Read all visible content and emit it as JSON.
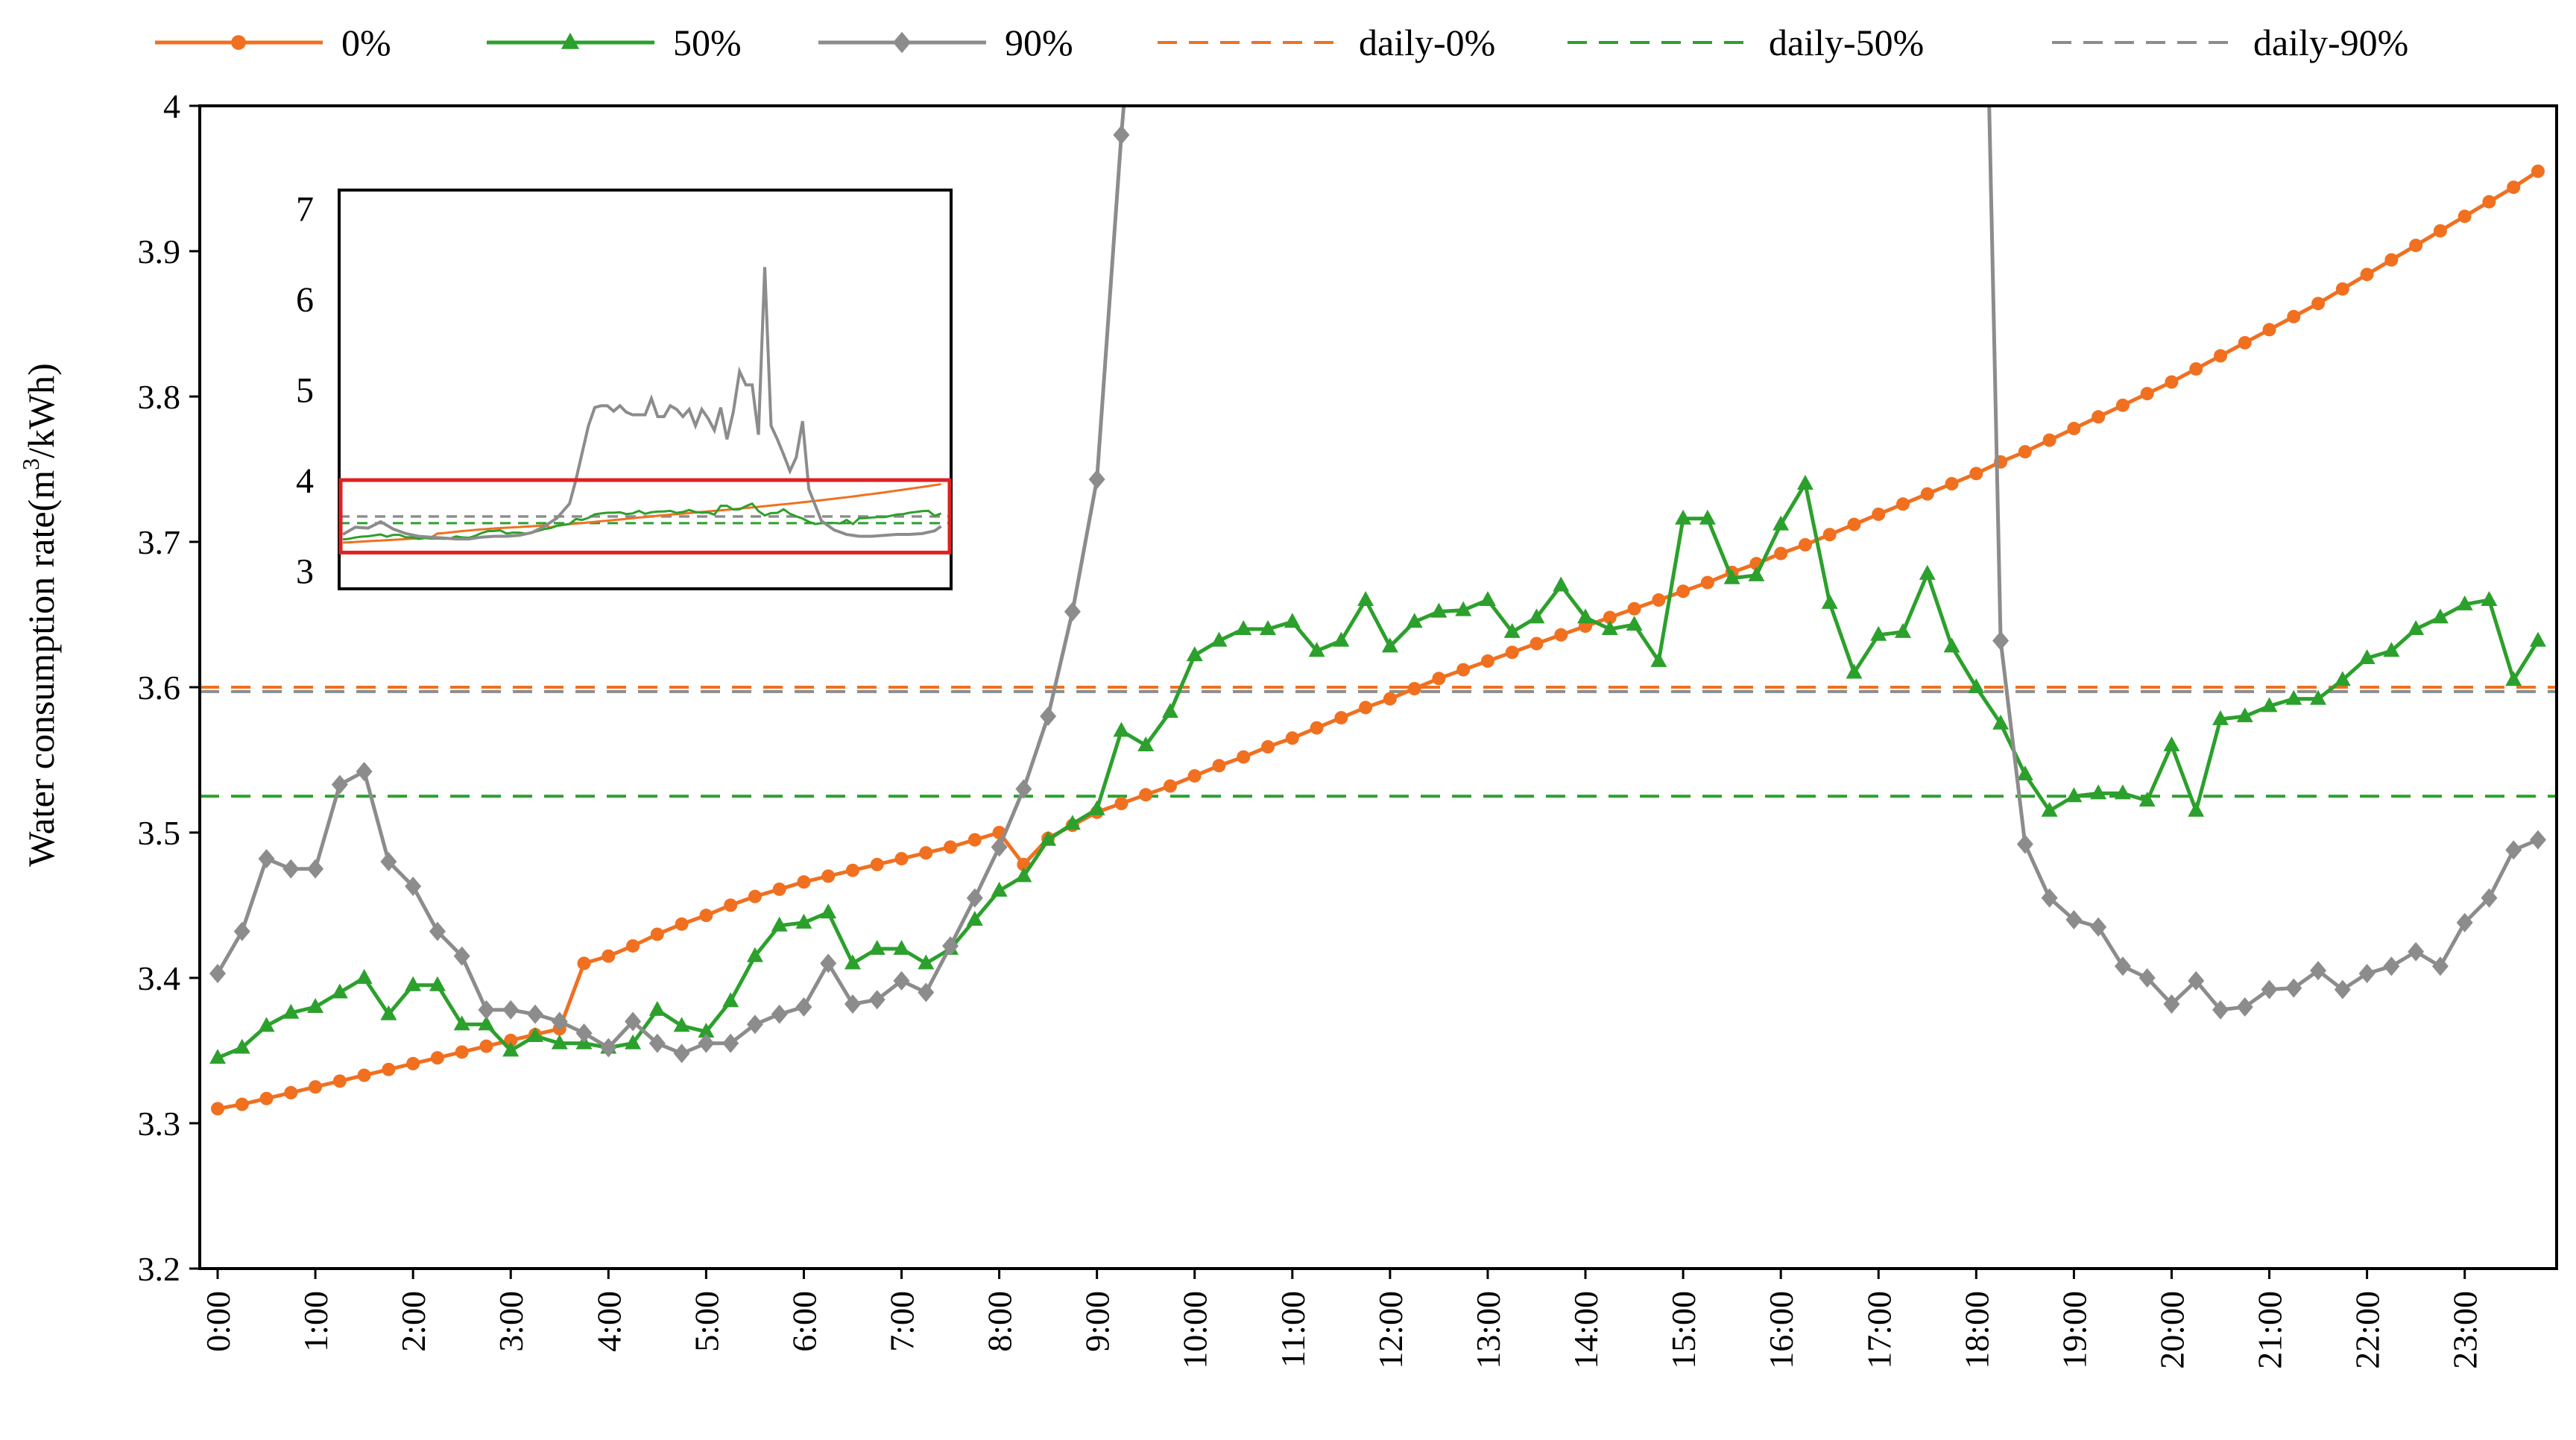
{
  "chart_data": {
    "type": "line",
    "title": "",
    "ylabel": "Water consumption rate(m³/kWh)",
    "ylabel_parts": [
      "Water consumption rate(m",
      "3",
      "/kWh)"
    ],
    "xlabel": "",
    "ylim": [
      3.2,
      4.0
    ],
    "yticks": [
      "3.2",
      "3.3",
      "3.4",
      "3.5",
      "3.6",
      "3.7",
      "3.8",
      "3.9",
      "4"
    ],
    "x_hours_range": [
      0,
      23.75
    ],
    "xtick_labels": [
      "0:00",
      "1:00",
      "2:00",
      "3:00",
      "4:00",
      "5:00",
      "6:00",
      "7:00",
      "8:00",
      "9:00",
      "10:00",
      "11:00",
      "12:00",
      "13:00",
      "14:00",
      "15:00",
      "16:00",
      "17:00",
      "18:00",
      "19:00",
      "20:00",
      "21:00",
      "22:00",
      "23:00"
    ],
    "grid": false,
    "legend_position": "top",
    "series": [
      {
        "name": "0%",
        "color": "#f07020",
        "marker": "circle",
        "x": [
          0,
          0.25,
          0.5,
          0.75,
          1,
          1.25,
          1.5,
          1.75,
          2,
          2.25,
          2.5,
          2.75,
          3,
          3.25,
          3.5,
          3.75,
          4,
          4.25,
          4.5,
          4.75,
          5,
          5.25,
          5.5,
          5.75,
          6,
          6.25,
          6.5,
          6.75,
          7,
          7.25,
          7.5,
          7.75,
          8,
          8.25,
          8.5,
          8.75,
          9,
          9.25,
          9.5,
          9.75,
          10,
          10.25,
          10.5,
          10.75,
          11,
          11.25,
          11.5,
          11.75,
          12,
          12.25,
          12.5,
          12.75,
          13,
          13.25,
          13.5,
          13.75,
          14,
          14.25,
          14.5,
          14.75,
          15,
          15.25,
          15.5,
          15.75,
          16,
          16.25,
          16.5,
          16.75,
          17,
          17.25,
          17.5,
          17.75,
          18,
          18.25,
          18.5,
          18.75,
          19,
          19.25,
          19.5,
          19.75,
          20,
          20.25,
          20.5,
          20.75,
          21,
          21.25,
          21.5,
          21.75,
          22,
          22.25,
          22.5,
          22.75,
          23,
          23.25,
          23.5,
          23.75
        ],
        "values": [
          3.31,
          3.313,
          3.317,
          3.321,
          3.325,
          3.329,
          3.333,
          3.337,
          3.341,
          3.345,
          3.349,
          3.353,
          3.357,
          3.361,
          3.365,
          3.41,
          3.415,
          3.422,
          3.43,
          3.437,
          3.443,
          3.45,
          3.456,
          3.461,
          3.466,
          3.47,
          3.474,
          3.478,
          3.482,
          3.486,
          3.49,
          3.495,
          3.5,
          3.478,
          3.496,
          3.505,
          3.514,
          3.52,
          3.526,
          3.532,
          3.539,
          3.546,
          3.552,
          3.559,
          3.565,
          3.572,
          3.579,
          3.586,
          3.592,
          3.599,
          3.606,
          3.612,
          3.618,
          3.624,
          3.63,
          3.636,
          3.642,
          3.648,
          3.654,
          3.66,
          3.666,
          3.672,
          3.679,
          3.685,
          3.692,
          3.698,
          3.705,
          3.712,
          3.719,
          3.726,
          3.733,
          3.74,
          3.747,
          3.755,
          3.762,
          3.77,
          3.778,
          3.786,
          3.794,
          3.802,
          3.81,
          3.819,
          3.828,
          3.837,
          3.846,
          3.855,
          3.864,
          3.874,
          3.884,
          3.894,
          3.904,
          3.914,
          3.924,
          3.934,
          3.944,
          3.955
        ]
      },
      {
        "name": "50%",
        "color": "#2ca02c",
        "marker": "triangle",
        "x": [
          0,
          0.25,
          0.5,
          0.75,
          1,
          1.25,
          1.5,
          1.75,
          2,
          2.25,
          2.5,
          2.75,
          3,
          3.25,
          3.5,
          3.75,
          4,
          4.25,
          4.5,
          4.75,
          5,
          5.25,
          5.5,
          5.75,
          6,
          6.25,
          6.5,
          6.75,
          7,
          7.25,
          7.5,
          7.75,
          8,
          8.25,
          8.5,
          8.75,
          9,
          9.25,
          9.5,
          9.75,
          10,
          10.25,
          10.5,
          10.75,
          11,
          11.25,
          11.5,
          11.75,
          12,
          12.25,
          12.5,
          12.75,
          13,
          13.25,
          13.5,
          13.75,
          14,
          14.25,
          14.5,
          14.75,
          15,
          15.25,
          15.5,
          15.75,
          16,
          16.25,
          16.5,
          16.75,
          17,
          17.25,
          17.5,
          17.75,
          18,
          18.25,
          18.5,
          18.75,
          19,
          19.25,
          19.5,
          19.75,
          20,
          20.25,
          20.5,
          20.75,
          21,
          21.25,
          21.5,
          21.75,
          22,
          22.25,
          22.5,
          22.75,
          23,
          23.25,
          23.5,
          23.75
        ],
        "values": [
          3.345,
          3.352,
          3.367,
          3.376,
          3.38,
          3.39,
          3.4,
          3.375,
          3.395,
          3.395,
          3.368,
          3.368,
          3.35,
          3.36,
          3.355,
          3.355,
          3.352,
          3.355,
          3.378,
          3.367,
          3.363,
          3.384,
          3.415,
          3.436,
          3.438,
          3.445,
          3.41,
          3.42,
          3.42,
          3.41,
          3.42,
          3.44,
          3.46,
          3.47,
          3.495,
          3.506,
          3.516,
          3.57,
          3.56,
          3.583,
          3.622,
          3.632,
          3.64,
          3.64,
          3.645,
          3.625,
          3.632,
          3.66,
          3.628,
          3.645,
          3.652,
          3.653,
          3.66,
          3.638,
          3.648,
          3.67,
          3.648,
          3.64,
          3.643,
          3.618,
          3.716,
          3.716,
          3.675,
          3.677,
          3.712,
          3.74,
          3.658,
          3.61,
          3.636,
          3.638,
          3.678,
          3.628,
          3.6,
          3.575,
          3.54,
          3.515,
          3.525,
          3.527,
          3.527,
          3.522,
          3.56,
          3.515,
          3.578,
          3.58,
          3.587,
          3.592,
          3.592,
          3.605,
          3.62,
          3.625,
          3.64,
          3.648,
          3.657,
          3.66,
          3.605,
          3.632
        ]
      },
      {
        "name": "90%",
        "color": "#8c8c8c",
        "marker": "diamond",
        "x": [
          0,
          0.25,
          0.5,
          0.75,
          1,
          1.25,
          1.5,
          1.75,
          2,
          2.25,
          2.5,
          2.75,
          3,
          3.25,
          3.5,
          3.75,
          4,
          4.25,
          4.5,
          4.75,
          5,
          5.25,
          5.5,
          5.75,
          6,
          6.25,
          6.5,
          6.75,
          7,
          7.25,
          7.5,
          7.75,
          8,
          8.25,
          8.5,
          8.75,
          9,
          9.25,
          18.25,
          18.5,
          18.75,
          19,
          19.25,
          19.5,
          19.75,
          20,
          20.25,
          20.5,
          20.75,
          21,
          21.25,
          21.5,
          21.75,
          22,
          22.25,
          22.5,
          22.75,
          23,
          23.25,
          23.5,
          23.75
        ],
        "values": [
          3.403,
          3.432,
          3.482,
          3.475,
          3.475,
          3.533,
          3.542,
          3.48,
          3.463,
          3.432,
          3.415,
          3.378,
          3.378,
          3.375,
          3.37,
          3.362,
          3.352,
          3.37,
          3.355,
          3.348,
          3.355,
          3.355,
          3.368,
          3.375,
          3.38,
          3.41,
          3.382,
          3.385,
          3.398,
          3.39,
          3.422,
          3.455,
          3.49,
          3.53,
          3.58,
          3.652,
          3.743,
          3.98,
          3.632,
          3.492,
          3.455,
          3.44,
          3.435,
          3.408,
          3.4,
          3.382,
          3.398,
          3.378,
          3.38,
          3.392,
          3.393,
          3.405,
          3.392,
          3.403,
          3.408,
          3.418,
          3.408,
          3.438,
          3.455,
          3.488,
          3.495
        ],
        "offscale_segments": [
          [
            9.4,
            18.1
          ]
        ]
      },
      {
        "name": "daily-0%",
        "color": "#f07020",
        "dashed": true,
        "constant": 3.6
      },
      {
        "name": "daily-50%",
        "color": "#2ca02c",
        "dashed": true,
        "constant": 3.525
      },
      {
        "name": "daily-90%",
        "color": "#8c8c8c",
        "dashed": true,
        "constant": 3.597
      }
    ],
    "inset": {
      "ylim": [
        2.8,
        7.2
      ],
      "yticks": [
        "3",
        "4",
        "5",
        "6",
        "7"
      ],
      "highlight_box": {
        "y_range": [
          3.2,
          4.0
        ],
        "color": "#e02020"
      },
      "series_90_x": [
        0,
        0.5,
        1,
        1.5,
        2,
        2.5,
        3,
        3.5,
        4,
        4.5,
        5,
        5.5,
        6,
        6.5,
        7,
        7.5,
        8,
        8.5,
        9,
        9.25,
        9.5,
        9.75,
        10,
        10.25,
        10.5,
        10.75,
        11,
        11.25,
        11.5,
        11.75,
        12,
        12.25,
        12.5,
        12.75,
        13,
        13.25,
        13.5,
        13.75,
        14,
        14.25,
        14.5,
        14.75,
        15,
        15.25,
        15.5,
        15.75,
        16,
        16.25,
        16.5,
        16.75,
        17,
        17.25,
        17.5,
        17.75,
        18,
        18.25,
        18.5,
        19,
        19.5,
        20,
        20.5,
        21,
        21.5,
        22,
        22.5,
        23,
        23.5,
        23.75
      ],
      "series_90_values": [
        3.4,
        3.48,
        3.47,
        3.54,
        3.46,
        3.41,
        3.38,
        3.37,
        3.36,
        3.35,
        3.35,
        3.37,
        3.38,
        3.38,
        3.39,
        3.42,
        3.49,
        3.58,
        3.74,
        4.0,
        4.3,
        4.6,
        4.8,
        4.82,
        4.82,
        4.76,
        4.82,
        4.75,
        4.72,
        4.72,
        4.72,
        4.9,
        4.7,
        4.7,
        4.82,
        4.78,
        4.7,
        4.78,
        4.6,
        4.78,
        4.68,
        4.55,
        4.8,
        4.45,
        4.75,
        5.2,
        5.05,
        5.05,
        4.5,
        6.35,
        4.6,
        4.45,
        4.28,
        4.1,
        4.25,
        4.65,
        3.9,
        3.55,
        3.45,
        3.4,
        3.38,
        3.38,
        3.39,
        3.4,
        3.4,
        3.41,
        3.44,
        3.49,
        3.49
      ]
    }
  }
}
